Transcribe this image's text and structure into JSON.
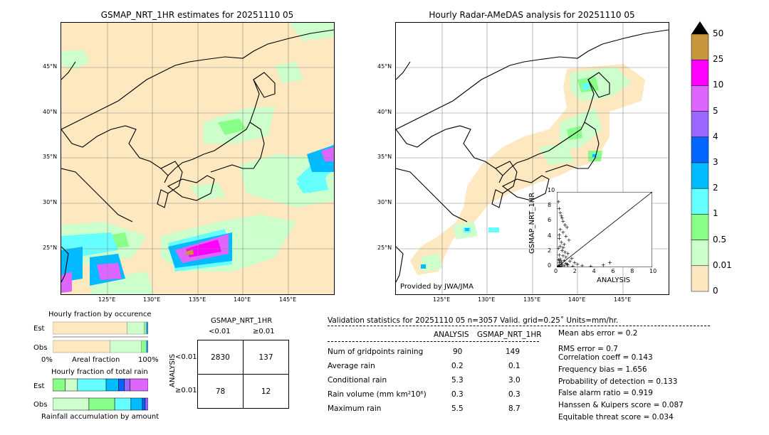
{
  "left_map": {
    "title": "GSMAP_NRT_1HR estimates for 20251110 05",
    "lat_labels": [
      "45°N",
      "40°N",
      "35°N",
      "30°N",
      "25°N"
    ],
    "lon_labels": [
      "125°E",
      "130°E",
      "135°E",
      "140°E",
      "145°E"
    ]
  },
  "right_map": {
    "title": "Hourly Radar-AMeDAS analysis for 20251110 05",
    "lat_labels": [
      "45°N",
      "40°N",
      "35°N",
      "30°N",
      "25°N"
    ],
    "lon_labels": [
      "125°E",
      "130°E",
      "135°E",
      "140°E",
      "145°E"
    ],
    "credit": "Provided by JWA/JMA"
  },
  "colorbar": {
    "labels": [
      "50",
      "25",
      "10",
      "5",
      "4",
      "3",
      "2",
      "1",
      "0.5",
      "0.01",
      "0"
    ],
    "colors": [
      "#c8963c",
      "#ff00ff",
      "#dd66ff",
      "#9966ff",
      "#0066ff",
      "#00bbff",
      "#66ffff",
      "#88ff88",
      "#ccffcc",
      "#fce8c0"
    ]
  },
  "chart_data": [
    {
      "type": "scatter",
      "xlabel": "ANALYSIS",
      "ylabel": "GSMAP_NRT_1HR",
      "xlim": [
        0,
        10
      ],
      "ylim": [
        0,
        10
      ],
      "xticks": [
        "0",
        "2",
        "4",
        "6",
        "8",
        "10"
      ],
      "yticks": [
        "0",
        "2",
        "4",
        "6",
        "8",
        "10"
      ],
      "points": [
        [
          0.1,
          8.7
        ],
        [
          0.2,
          7.8
        ],
        [
          0.3,
          7.2
        ],
        [
          0.4,
          6.8
        ],
        [
          0.5,
          6.5
        ],
        [
          0.6,
          6.1
        ],
        [
          0.8,
          5.6
        ],
        [
          1.0,
          5.3
        ],
        [
          0.3,
          5.0
        ],
        [
          0.6,
          4.6
        ],
        [
          0.2,
          4.3
        ],
        [
          0.9,
          4.1
        ],
        [
          1.2,
          3.6
        ],
        [
          0.4,
          3.3
        ],
        [
          0.7,
          3.0
        ],
        [
          0.3,
          2.8
        ],
        [
          0.1,
          2.5
        ],
        [
          0.5,
          2.2
        ],
        [
          0.8,
          2.0
        ],
        [
          1.1,
          1.8
        ],
        [
          0.2,
          1.6
        ],
        [
          0.6,
          1.5
        ],
        [
          0.9,
          1.3
        ],
        [
          1.5,
          1.2
        ],
        [
          0.3,
          1.1
        ],
        [
          0.1,
          1.0
        ],
        [
          0.7,
          0.9
        ],
        [
          1.3,
          0.8
        ],
        [
          0.4,
          0.7
        ],
        [
          0.2,
          0.6
        ],
        [
          1.8,
          0.6
        ],
        [
          0.9,
          0.5
        ],
        [
          0.5,
          0.4
        ],
        [
          2.1,
          0.4
        ],
        [
          0.3,
          0.3
        ],
        [
          1.1,
          0.3
        ],
        [
          0.1,
          0.2
        ],
        [
          2.6,
          0.2
        ],
        [
          0.7,
          0.2
        ],
        [
          0.4,
          0.1
        ],
        [
          3.5,
          0.1
        ],
        [
          1.6,
          0.1
        ],
        [
          0.2,
          0.05
        ],
        [
          4.8,
          0.3
        ],
        [
          5.5,
          0.6
        ],
        [
          0.1,
          0.1
        ],
        [
          0.3,
          0.9
        ],
        [
          0.6,
          2.6
        ],
        [
          1.0,
          0.4
        ],
        [
          0.2,
          3.8
        ]
      ]
    },
    {
      "type": "bar",
      "title": "Hourly fraction by occurence",
      "categories": [
        "Est",
        "Obs"
      ],
      "xlabels": [
        "0%",
        "Areal fraction",
        "100%"
      ],
      "series": [
        {
          "values_est": [
            0.78,
            0.18,
            0.02,
            0.01,
            0.01
          ],
          "values_obs": [
            0.6,
            0.33,
            0.05,
            0.01,
            0.01
          ]
        }
      ]
    },
    {
      "type": "bar",
      "title": "Hourly fraction of total rain",
      "categories": [
        "Est",
        "Obs"
      ],
      "xlabel": "Rainfall accumulation by amount",
      "series": [
        {
          "values_est": [
            0.13,
            0.13,
            0.3,
            0.13,
            0.06,
            0.06,
            0.19
          ],
          "values_obs": [
            0.38,
            0.27,
            0.17,
            0.12,
            0.03,
            0.03
          ]
        }
      ]
    },
    {
      "type": "table",
      "title": "GSMAP_NRT_1HR",
      "col_headers": [
        "<0.01",
        "≥0.01"
      ],
      "row_label": "ANALYSIS",
      "row_headers": [
        "<0.01",
        "≥0.01"
      ],
      "cells": [
        [
          "2830",
          "137"
        ],
        [
          "78",
          "12"
        ]
      ]
    }
  ],
  "validation": {
    "header": "Validation statistics for 20251110 05  n=3057 Valid. grid=0.25˚ Units=mm/hr.",
    "col1": "ANALYSIS",
    "col2": "GSMAP_NRT_1HR",
    "rows": [
      {
        "label": "Num of gridpoints raining",
        "a": "90",
        "g": "149"
      },
      {
        "label": "Average rain",
        "a": "0.2",
        "g": "0.1"
      },
      {
        "label": "Conditional rain",
        "a": "5.3",
        "g": "3.0"
      },
      {
        "label": "Rain volume (mm km²10⁶)",
        "a": "0.3",
        "g": "0.3"
      },
      {
        "label": "Maximum rain",
        "a": "5.5",
        "g": "8.7"
      }
    ],
    "scores": [
      "Mean abs error =    0.2",
      "RMS error =    0.7",
      "Correlation coeff =  0.143",
      "Frequency bias =  1.656",
      "Probability of detection =  0.133",
      "False alarm ratio =  0.919",
      "Hanssen & Kuipers score =  0.087",
      "Equitable threat score =  0.034"
    ]
  }
}
